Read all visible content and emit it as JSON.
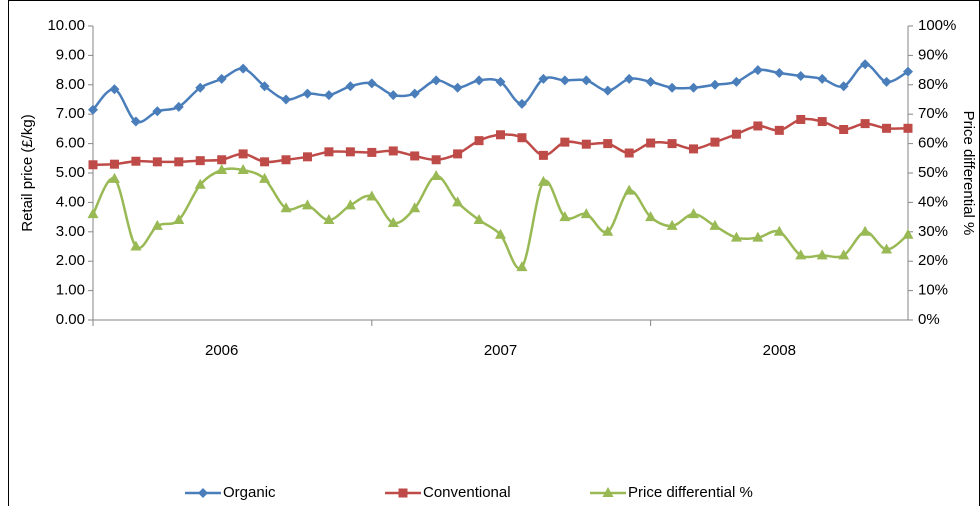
{
  "chart_data": {
    "type": "line",
    "y_label": "Retail price (£/kg)",
    "y2_label": "Price differential %",
    "categories": [
      null,
      null,
      null,
      null,
      null,
      null,
      null,
      null,
      null,
      null,
      null,
      null,
      null,
      null,
      null,
      null,
      null,
      null,
      null,
      null,
      null,
      null,
      null,
      null,
      null,
      null,
      null,
      null,
      null,
      null,
      null,
      null,
      null,
      null,
      null,
      null,
      null,
      null,
      null
    ],
    "x_groups": [
      "2006",
      "2007",
      "2008"
    ],
    "ylim": [
      0,
      10
    ],
    "yticks": [
      {
        "value": 0,
        "label": "0.00"
      },
      {
        "value": 1,
        "label": "1.00"
      },
      {
        "value": 2,
        "label": "2.00"
      },
      {
        "value": 3,
        "label": "3.00"
      },
      {
        "value": 4,
        "label": "4.00"
      },
      {
        "value": 5,
        "label": "5.00"
      },
      {
        "value": 6,
        "label": "6.00"
      },
      {
        "value": 7,
        "label": "7.00"
      },
      {
        "value": 8,
        "label": "8.00"
      },
      {
        "value": 9,
        "label": "9.00"
      },
      {
        "value": 10,
        "label": "10.00"
      }
    ],
    "y2lim": [
      0,
      100
    ],
    "y2ticks": [
      {
        "value": 0,
        "label": "0%"
      },
      {
        "value": 10,
        "label": "10%"
      },
      {
        "value": 20,
        "label": "20%"
      },
      {
        "value": 30,
        "label": "30%"
      },
      {
        "value": 40,
        "label": "40%"
      },
      {
        "value": 50,
        "label": "50%"
      },
      {
        "value": 60,
        "label": "60%"
      },
      {
        "value": 70,
        "label": "70%"
      },
      {
        "value": 80,
        "label": "80%"
      },
      {
        "value": 90,
        "label": "90%"
      },
      {
        "value": 100,
        "label": "100%"
      }
    ],
    "legend": "bottom",
    "series": [
      {
        "name": "Organic",
        "color": "#4a7ebb",
        "marker": "diamond",
        "values": [
          7.15,
          7.85,
          6.75,
          7.1,
          7.25,
          7.9,
          8.2,
          8.55,
          7.95,
          7.5,
          7.7,
          7.65,
          7.95,
          8.05,
          7.65,
          7.7,
          8.15,
          7.9,
          8.15,
          8.1,
          7.35,
          8.2,
          8.15,
          8.15,
          7.8,
          8.2,
          8.1,
          7.9,
          7.9,
          8.0,
          8.1,
          8.5,
          8.4,
          8.3,
          8.2,
          7.95,
          8.7,
          8.1,
          8.45
        ]
      },
      {
        "name": "Conventional",
        "color": "#be4b48",
        "marker": "square",
        "values": [
          5.28,
          5.3,
          5.4,
          5.38,
          5.38,
          5.42,
          5.45,
          5.65,
          5.38,
          5.45,
          5.55,
          5.72,
          5.72,
          5.7,
          5.75,
          5.58,
          5.45,
          5.65,
          6.1,
          6.3,
          6.2,
          5.6,
          6.05,
          5.98,
          6.0,
          5.68,
          6.02,
          6.0,
          5.82,
          6.05,
          6.32,
          6.6,
          6.45,
          6.82,
          6.75,
          6.48,
          6.68,
          6.52,
          6.52
        ]
      },
      {
        "name": "Price differential %",
        "color": "#98b954",
        "marker": "triangle",
        "axis": "y2",
        "values": [
          36,
          48,
          25,
          32,
          34,
          46,
          51,
          51,
          48,
          38,
          39,
          34,
          39,
          42,
          33,
          38,
          49,
          40,
          34,
          29,
          18,
          47,
          35,
          36,
          30,
          44,
          35,
          32,
          36,
          32,
          28,
          28,
          30,
          22,
          22,
          22,
          30,
          24,
          29
        ]
      }
    ]
  }
}
